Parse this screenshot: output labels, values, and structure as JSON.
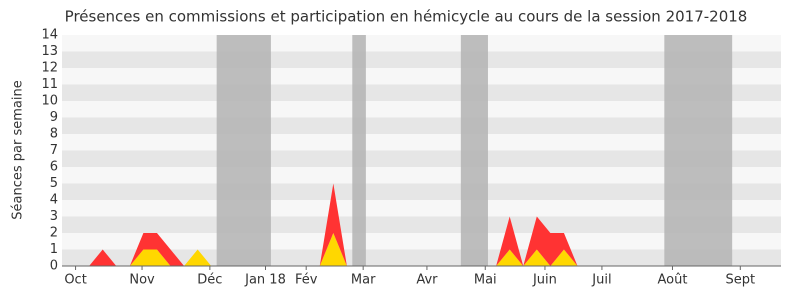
{
  "chart_data": {
    "type": "stacked-area",
    "title": "Présences en commissions et participation en hémicycle au cours de la session 2017-2018",
    "y_label": "Séances par semaine",
    "x": [
      0,
      1,
      2,
      3,
      4,
      5,
      6,
      7,
      8,
      9,
      10,
      11,
      12,
      13,
      14,
      15,
      16,
      17,
      18,
      19,
      20,
      21,
      22,
      23,
      24,
      25,
      26,
      27,
      28,
      29,
      30,
      31,
      32,
      33,
      34,
      35,
      36,
      37,
      38,
      39,
      40,
      41,
      42,
      43,
      44,
      45,
      46,
      47,
      48,
      49,
      50,
      51,
      52,
      53
    ],
    "series": [
      {
        "color": "#ffd700",
        "values": [
          0,
          0,
          0,
          0,
          0,
          0,
          1,
          1,
          0,
          0,
          1,
          0,
          0,
          0,
          0,
          0,
          0,
          0,
          0,
          0,
          2,
          0,
          0,
          0,
          0,
          0,
          0,
          0,
          0,
          0,
          0,
          0,
          0,
          1,
          0,
          1,
          0,
          1,
          0,
          0,
          0,
          0,
          0,
          0,
          0,
          0,
          0,
          0,
          0,
          0,
          0,
          0,
          0,
          0
        ]
      },
      {
        "color": "#ff3333",
        "values": [
          0,
          0,
          0,
          1,
          0,
          0,
          1,
          1,
          1,
          0,
          0,
          0,
          0,
          0,
          0,
          0,
          0,
          0,
          0,
          0,
          3,
          0,
          0,
          0,
          0,
          0,
          0,
          0,
          0,
          0,
          0,
          0,
          0,
          2,
          0,
          2,
          2,
          1,
          0,
          0,
          0,
          0,
          0,
          0,
          0,
          0,
          0,
          0,
          0,
          0,
          0,
          0,
          0,
          0
        ]
      }
    ],
    "shaded_ranges": [
      [
        11.4,
        15.4
      ],
      [
        21.4,
        22.4
      ],
      [
        29.4,
        31.4
      ],
      [
        44.4,
        49.4
      ]
    ],
    "shade_color": "#b3b3b3",
    "xlim": [
      0,
      53
    ],
    "xticks": [
      {
        "value": 1,
        "label": "Oct"
      },
      {
        "value": 5.9,
        "label": "Nov"
      },
      {
        "value": 10.9,
        "label": "Déc"
      },
      {
        "value": 15,
        "label": "Jan 18"
      },
      {
        "value": 18,
        "label": "Fév"
      },
      {
        "value": 22.2,
        "label": "Mar"
      },
      {
        "value": 26.9,
        "label": "Avr"
      },
      {
        "value": 31.2,
        "label": "Mai"
      },
      {
        "value": 35.6,
        "label": "Juin"
      },
      {
        "value": 39.8,
        "label": "Juil"
      },
      {
        "value": 45,
        "label": "Août"
      },
      {
        "value": 50,
        "label": "Sept"
      }
    ],
    "ylim": [
      0,
      14
    ],
    "yticks": [
      0,
      1,
      2,
      3,
      4,
      5,
      6,
      7,
      8,
      9,
      10,
      11,
      12,
      13,
      14
    ],
    "grid": true
  }
}
